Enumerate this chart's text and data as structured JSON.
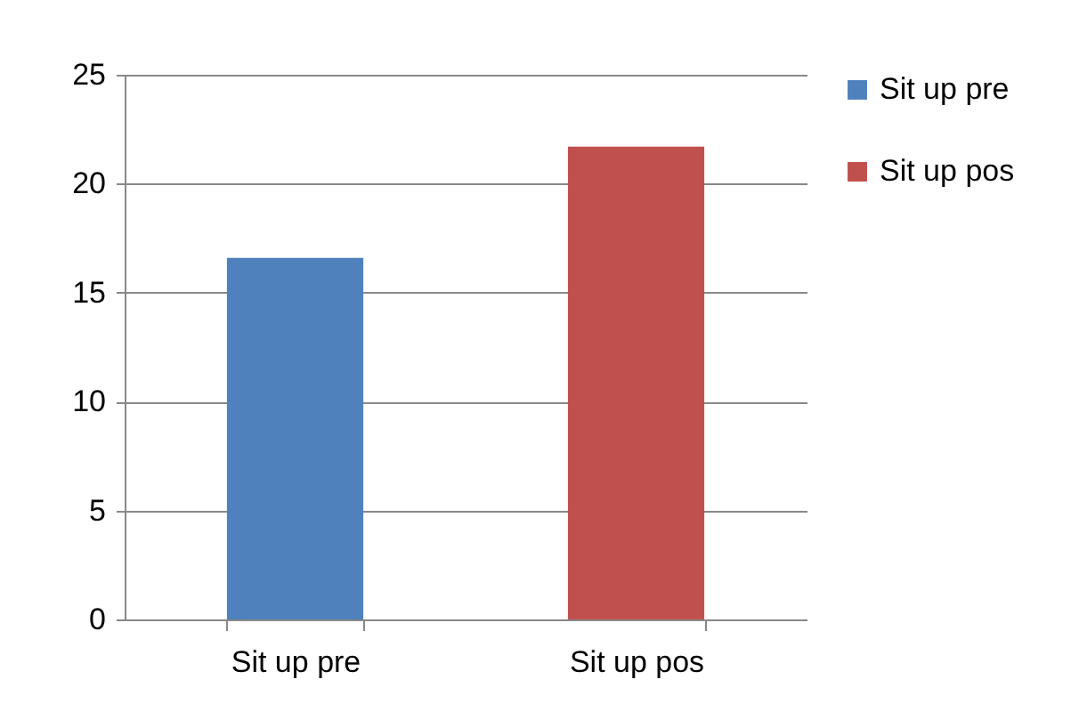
{
  "chart_data": {
    "type": "bar",
    "categories": [
      "Sit up pre",
      "Sit up pos"
    ],
    "series": [
      {
        "name": "Sit up pre",
        "color": "#4f81bd",
        "values": [
          16.6,
          null
        ]
      },
      {
        "name": "Sit up pos",
        "color": "#c0504d",
        "values": [
          null,
          21.7
        ]
      }
    ],
    "ylim": [
      0,
      25
    ],
    "yticks": [
      0,
      5,
      10,
      15,
      20,
      25
    ],
    "grid": "y",
    "legend": "right"
  }
}
